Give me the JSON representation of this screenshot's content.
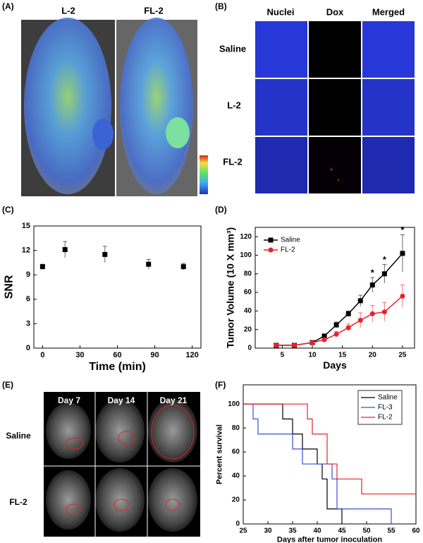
{
  "panels": {
    "A": {
      "label": "(A)",
      "columns": [
        "L-2",
        "FL-2"
      ]
    },
    "B": {
      "label": "(B)",
      "columns": [
        "Nuclei",
        "Dox",
        "Merged"
      ],
      "rows": [
        "Saline",
        "L-2",
        "FL-2"
      ]
    },
    "E": {
      "label": "(E)",
      "columns": [
        "Day 7",
        "Day 14",
        "Day 21"
      ],
      "rows": [
        "Saline",
        "FL-2"
      ]
    }
  },
  "chart_data": [
    {
      "type": "scatter",
      "label": "(C)",
      "xlabel": "Time (min)",
      "ylabel": "SNR",
      "x": [
        0,
        18,
        50,
        85,
        113
      ],
      "values": [
        10,
        12.1,
        11.5,
        10.3,
        10
      ],
      "errors": [
        0.3,
        1,
        1,
        0.6,
        0.4
      ],
      "color": "#000000",
      "xlim": [
        -7,
        127
      ],
      "ylim": [
        0,
        15
      ],
      "xticks": [
        0,
        30,
        60,
        90,
        120
      ],
      "yticks": [
        0,
        3,
        6,
        9,
        12,
        15
      ]
    },
    {
      "type": "line",
      "label": "(D)",
      "xlabel": "Days",
      "ylabel": "Tumor Volume (10 X mm³)",
      "x": [
        4,
        7,
        10,
        12,
        14,
        16,
        18,
        20,
        22,
        25
      ],
      "series": [
        {
          "name": "Saline",
          "color": "#000000",
          "marker": "square",
          "values": [
            3,
            3,
            6,
            13,
            25,
            37,
            51,
            68,
            80,
            102
          ],
          "errors": [
            1,
            1,
            1,
            2,
            3,
            3,
            6,
            8,
            10,
            20
          ]
        },
        {
          "name": "FL-2",
          "color": "#e8212b",
          "marker": "circle",
          "values": [
            3,
            3,
            6,
            9,
            15,
            22,
            30,
            37,
            39,
            56
          ],
          "errors": [
            1,
            1,
            1,
            2,
            3,
            4,
            8,
            9,
            10,
            12
          ]
        }
      ],
      "annotations": [
        {
          "x": 20,
          "text": "*"
        },
        {
          "x": 22,
          "text": "*"
        },
        {
          "x": 25,
          "text": "*"
        }
      ],
      "xlim": [
        0.5,
        27
      ],
      "ylim": [
        0,
        130
      ],
      "xticks": [
        5,
        10,
        15,
        20,
        25
      ],
      "yticks": [
        0,
        20,
        40,
        60,
        80,
        100,
        120
      ],
      "legend": "upper left"
    },
    {
      "type": "step",
      "label": "(F)",
      "xlabel": "Days after tumor inoculation",
      "ylabel": "Percent survival",
      "series": [
        {
          "name": "Saline",
          "color": "#000000",
          "x": [
            25,
            33,
            35,
            37,
            40,
            41,
            42,
            45
          ],
          "values": [
            100,
            87.5,
            75,
            62.5,
            50,
            37.5,
            12.5,
            0
          ]
        },
        {
          "name": "FL-3",
          "color": "#3a4fd8",
          "x": [
            25,
            27,
            28,
            35,
            37,
            43,
            44,
            55
          ],
          "values": [
            100,
            87.5,
            75,
            62.5,
            50,
            37.5,
            12.5,
            0
          ]
        },
        {
          "name": "FL-2",
          "color": "#e8212b",
          "x": [
            25,
            38,
            39,
            42,
            44,
            49,
            60
          ],
          "values": [
            100,
            87.5,
            75,
            50,
            37.5,
            25,
            25
          ]
        }
      ],
      "xlim": [
        25,
        60
      ],
      "ylim": [
        0,
        116
      ],
      "xticks": [
        25,
        30,
        35,
        40,
        45,
        50,
        55,
        60
      ],
      "yticks": [
        0,
        20,
        40,
        60,
        80,
        100
      ],
      "legend": "upper right"
    }
  ]
}
